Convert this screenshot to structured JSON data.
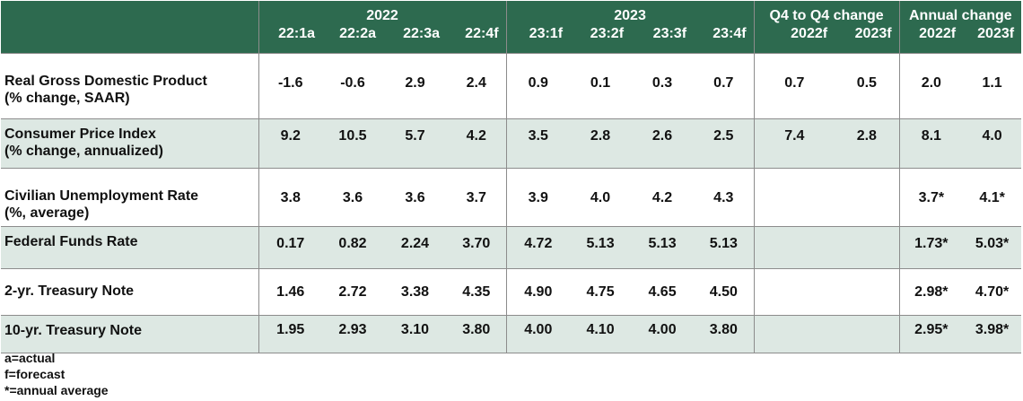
{
  "header": {
    "year1": "2022",
    "year2": "2023",
    "q4": "Q4 to Q4 change",
    "annual": "Annual change",
    "quarters": [
      "22:1a",
      "22:2a",
      "22:3a",
      "22:4f",
      "23:1f",
      "23:2f",
      "23:3f",
      "23:4f"
    ],
    "q4_years": [
      "2022f",
      "2023f"
    ],
    "annual_years": [
      "2022f",
      "2023f"
    ]
  },
  "rows": [
    {
      "label1": "Real Gross Domestic Product",
      "label2": "(% change, SAAR)",
      "q": [
        "-1.6",
        "-0.6",
        "2.9",
        "2.4",
        "0.9",
        "0.1",
        "0.3",
        "0.7"
      ],
      "q4": [
        "0.7",
        "0.5"
      ],
      "annual": [
        "2.0",
        "1.1"
      ]
    },
    {
      "label1": "Consumer Price Index",
      "label2": "(% change, annualized)",
      "q": [
        "9.2",
        "10.5",
        "5.7",
        "4.2",
        "3.5",
        "2.8",
        "2.6",
        "2.5"
      ],
      "q4": [
        "7.4",
        "2.8"
      ],
      "annual": [
        "8.1",
        "4.0"
      ]
    },
    {
      "label1": "Civilian Unemployment Rate",
      "label2": "(%, average)",
      "q": [
        "3.8",
        "3.6",
        "3.6",
        "3.7",
        "3.9",
        "4.0",
        "4.2",
        "4.3"
      ],
      "q4": [
        "",
        ""
      ],
      "annual": [
        "3.7*",
        "4.1*"
      ]
    },
    {
      "label1": "Federal Funds Rate",
      "label2": "",
      "q": [
        "0.17",
        "0.82",
        "2.24",
        "3.70",
        "4.72",
        "5.13",
        "5.13",
        "5.13"
      ],
      "q4": [
        "",
        ""
      ],
      "annual": [
        "1.73*",
        "5.03*"
      ]
    },
    {
      "label1": "2-yr. Treasury Note",
      "label2": "",
      "q": [
        "1.46",
        "2.72",
        "3.38",
        "4.35",
        "4.90",
        "4.75",
        "4.65",
        "4.50"
      ],
      "q4": [
        "",
        ""
      ],
      "annual": [
        "2.98*",
        "4.70*"
      ]
    },
    {
      "label1": "10-yr. Treasury Note",
      "label2": "",
      "q": [
        "1.95",
        "2.93",
        "3.10",
        "3.80",
        "4.00",
        "4.10",
        "4.00",
        "3.80"
      ],
      "q4": [
        "",
        ""
      ],
      "annual": [
        "2.95*",
        "3.98*"
      ]
    }
  ],
  "notes": [
    "a=actual",
    "f=forecast",
    "*=annual average"
  ]
}
